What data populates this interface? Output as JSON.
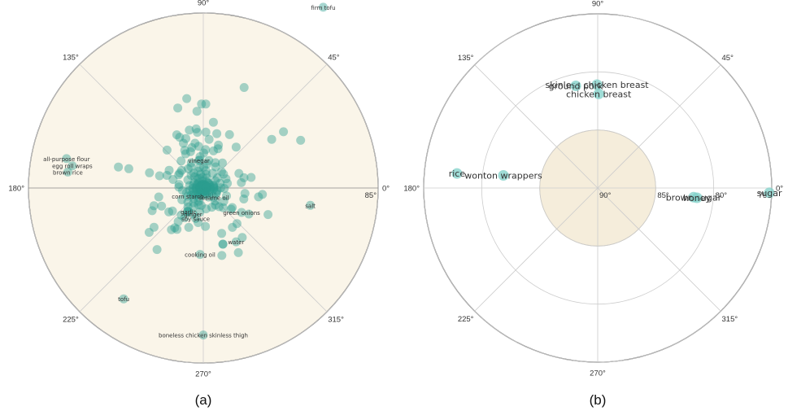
{
  "chart_data": [
    {
      "type": "scatter",
      "projection": "polar",
      "caption": "(a)",
      "background": "#faf5e9",
      "point_color": "#2a9d8f",
      "angle_ticks": [
        "0°",
        "45°",
        "90°",
        "135°",
        "180°",
        "225°",
        "270°",
        "315°"
      ],
      "radial_ticks": [
        {
          "value": 90,
          "label": "90°"
        },
        {
          "value": 85,
          "label": "85°"
        }
      ],
      "r_range": [
        90,
        85
      ],
      "labeled_points": [
        {
          "name": "flank steak",
          "theta": 97.9,
          "r": 84.2
        },
        {
          "name": "pork tenderloin",
          "theta": 92.2,
          "r": 84.0
        },
        {
          "name": "porkchicken",
          "theta": 94.5,
          "r": 83.9
        },
        {
          "name": "firm tofu",
          "theta": 56.4,
          "r": 83.8
        },
        {
          "name": "vinegar",
          "theta": 99.0,
          "r": 89.2
        },
        {
          "name": "brown rice",
          "theta": 173.3,
          "r": 86.1
        },
        {
          "name": "all-purpose flour",
          "theta": 167.9,
          "r": 86.0
        },
        {
          "name": "egg roll wraps",
          "theta": 170.4,
          "r": 86.2
        },
        {
          "name": "corn starch",
          "theta": 207.6,
          "r": 89.5
        },
        {
          "name": "sesame oil",
          "theta": 318.8,
          "r": 89.6
        },
        {
          "name": "garlic",
          "theta": 238.0,
          "r": 89.2
        },
        {
          "name": "green onions",
          "theta": 327.5,
          "r": 88.7
        },
        {
          "name": "ginger",
          "theta": 248.6,
          "r": 89.2
        },
        {
          "name": "soy sauce",
          "theta": 255.9,
          "r": 89.1
        },
        {
          "name": "salt",
          "theta": 350.8,
          "r": 86.9
        },
        {
          "name": "cooking oil",
          "theta": 267.2,
          "r": 88.1
        },
        {
          "name": "water",
          "theta": 301.4,
          "r": 88.2
        },
        {
          "name": "tofu",
          "theta": 234.3,
          "r": 86.1
        },
        {
          "name": "boneless chicken skinless thigh",
          "theta": 270.0,
          "r": 85.8
        }
      ],
      "points": [
        [
          116.5,
          88.3
        ],
        [
          115.0,
          88.4
        ],
        [
          109.5,
          88.5
        ],
        [
          103.6,
          88.3
        ],
        [
          96.1,
          88.4
        ],
        [
          96.9,
          88.3
        ],
        [
          87.3,
          88.4
        ],
        [
          83.2,
          88.6
        ],
        [
          76.0,
          88.4
        ],
        [
          63.9,
          88.3
        ],
        [
          133.8,
          88.5
        ],
        [
          88.3,
          87.6
        ],
        [
          94.7,
          87.8
        ],
        [
          67.9,
          86.9
        ],
        [
          100.5,
          87.4
        ],
        [
          114.0,
          88.6
        ],
        [
          117.3,
          88.9
        ],
        [
          89.4,
          89.0
        ],
        [
          70.6,
          88.7
        ],
        [
          35.4,
          87.6
        ],
        [
          35.0,
          87.2
        ],
        [
          26.1,
          86.9
        ],
        [
          107.7,
          87.6
        ],
        [
          81.3,
          88.1
        ],
        [
          69.5,
          88.8
        ],
        [
          97.8,
          89.2
        ],
        [
          101.5,
          89.6
        ],
        [
          80.8,
          89.3
        ],
        [
          164.4,
          88.7
        ],
        [
          164.2,
          88.4
        ],
        [
          165.5,
          87.8
        ],
        [
          166.1,
          87.5
        ],
        [
          171.6,
          89.3
        ],
        [
          164.2,
          89.1
        ],
        [
          151.9,
          89.2
        ],
        [
          86.6,
          88.9
        ],
        [
          109.4,
          88.9
        ],
        [
          51.2,
          88.5
        ],
        [
          91.2,
          87.6
        ],
        [
          96.4,
          88.8
        ],
        [
          100.5,
          88.7
        ],
        [
          95.9,
          89.1
        ],
        [
          78.6,
          89.2
        ],
        [
          74.7,
          88.9
        ],
        [
          105.9,
          88.8
        ],
        [
          115.3,
          89.2
        ],
        [
          116.2,
          88.8
        ],
        [
          129.4,
          89.0
        ],
        [
          128.4,
          89.3
        ],
        [
          140.7,
          89.2
        ],
        [
          147.6,
          89.2
        ],
        [
          152.5,
          88.9
        ],
        [
          160.9,
          88.9
        ],
        [
          12.5,
          88.6
        ],
        [
          8.0,
          88.9
        ],
        [
          0.5,
          89.5
        ],
        [
          15.7,
          89.5
        ],
        [
          22.1,
          89.3
        ],
        [
          22.2,
          88.9
        ],
        [
          52.6,
          89.1
        ],
        [
          34.3,
          89.3
        ],
        [
          78.3,
          89.6
        ],
        [
          191.4,
          88.7
        ],
        [
          199.8,
          88.5
        ],
        [
          203.4,
          88.7
        ],
        [
          203.9,
          88.4
        ],
        [
          214.8,
          88.8
        ],
        [
          218.5,
          88.2
        ],
        [
          219.3,
          88.0
        ],
        [
          216.8,
          88.9
        ],
        [
          195.6,
          89.5
        ],
        [
          181.9,
          89.7
        ],
        [
          198.0,
          89.7
        ],
        [
          208.7,
          89.3
        ],
        [
          212.7,
          89.7
        ],
        [
          222.7,
          89.4
        ],
        [
          232.6,
          88.5
        ],
        [
          233.2,
          88.8
        ],
        [
          230.8,
          89.3
        ],
        [
          230.8,
          89.0
        ],
        [
          234.3,
          88.6
        ],
        [
          237.6,
          88.6
        ],
        [
          238.0,
          89.0
        ],
        [
          233.0,
          87.8
        ],
        [
          236.0,
          89.2
        ],
        [
          249.7,
          88.8
        ],
        [
          236.7,
          89.5
        ],
        [
          235.9,
          89.2
        ],
        [
          242.2,
          89.4
        ],
        [
          261.5,
          89.0
        ],
        [
          261.8,
          89.3
        ],
        [
          250.5,
          89.6
        ],
        [
          273.2,
          88.9
        ],
        [
          298.5,
          87.9
        ],
        [
          306.5,
          88.6
        ],
        [
          308.2,
          88.2
        ],
        [
          313.5,
          88.6
        ],
        [
          289.3,
          88.3
        ],
        [
          292.1,
          88.6
        ],
        [
          285.4,
          88.0
        ],
        [
          289.2,
          88.3
        ],
        [
          330.3,
          88.5
        ],
        [
          337.7,
          88.0
        ],
        [
          344.8,
          88.8
        ],
        [
          350.9,
          88.4
        ],
        [
          353.8,
          88.3
        ],
        [
          352.7,
          88.8
        ],
        [
          341.3,
          89.3
        ],
        [
          326.7,
          89.3
        ],
        [
          322.6,
          89.0
        ],
        [
          315.3,
          89.2
        ],
        [
          312.0,
          89.5
        ],
        [
          310.3,
          89.3
        ],
        [
          305.5,
          89.4
        ],
        [
          294.0,
          89.4
        ],
        [
          342.1,
          89.6
        ],
        [
          350.3,
          89.6
        ],
        [
          4.3,
          89.8
        ],
        [
          47.6,
          89.8
        ],
        [
          23.9,
          89.8
        ],
        [
          131.2,
          89.8
        ],
        [
          174.5,
          89.8
        ],
        [
          227.6,
          89.6
        ],
        [
          246.5,
          89.7
        ],
        [
          254.0,
          89.5
        ],
        [
          300.5,
          89.7
        ],
        [
          336.6,
          89.6
        ],
        [
          71.0,
          89.7
        ],
        [
          97.6,
          89.8
        ],
        [
          152.3,
          89.5
        ],
        [
          133.9,
          89.5
        ],
        [
          263.4,
          89.5
        ],
        [
          277.8,
          89.4
        ],
        [
          226.8,
          89.8
        ],
        [
          183.7,
          89.8
        ],
        [
          190.1,
          89.6
        ],
        [
          164.4,
          89.7
        ],
        [
          149.5,
          89.7
        ],
        [
          122.4,
          89.5
        ],
        [
          107.0,
          89.5
        ],
        [
          100.8,
          89.4
        ],
        [
          89.0,
          89.4
        ],
        [
          120.3,
          89.3
        ],
        [
          57.3,
          89.5
        ],
        [
          59.6,
          89.3
        ],
        [
          64.6,
          89.2
        ],
        [
          81.6,
          89.5
        ],
        [
          35.8,
          89.5
        ],
        [
          41.9,
          89.3
        ],
        [
          10.9,
          89.3
        ],
        [
          14.1,
          88.8
        ],
        [
          358.9,
          89.4
        ],
        [
          326.0,
          89.0
        ],
        [
          11.6,
          89.7
        ],
        [
          358.7,
          89.7
        ],
        [
          332.3,
          89.8
        ],
        [
          318.2,
          89.8
        ],
        [
          293.3,
          89.8
        ],
        [
          265.7,
          89.8
        ],
        [
          235.6,
          89.8
        ],
        [
          222.2,
          89.7
        ],
        [
          209.7,
          89.6
        ],
        [
          201.9,
          89.8
        ],
        [
          187.0,
          89.4
        ],
        [
          177.7,
          89.3
        ],
        [
          169.8,
          89.6
        ],
        [
          158.1,
          89.8
        ],
        [
          146.0,
          89.8
        ],
        [
          128.0,
          89.6
        ],
        [
          120.1,
          89.7
        ],
        [
          111.8,
          89.7
        ],
        [
          93.5,
          89.7
        ],
        [
          61.6,
          89.8
        ],
        [
          40.9,
          89.8
        ],
        [
          31.1,
          89.6
        ],
        [
          16.0,
          89.7
        ],
        [
          5.0,
          89.7
        ],
        [
          354.3,
          89.7
        ],
        [
          348.9,
          89.8
        ],
        [
          338.5,
          89.9
        ],
        [
          326.7,
          89.9
        ],
        [
          318.4,
          89.9
        ],
        [
          303.4,
          89.9
        ],
        [
          286.5,
          89.9
        ],
        [
          272.9,
          89.9
        ],
        [
          263.3,
          89.9
        ],
        [
          249.8,
          89.9
        ],
        [
          243.0,
          89.8
        ],
        [
          227.7,
          89.9
        ],
        [
          216.3,
          89.9
        ],
        [
          195.6,
          89.9
        ],
        [
          176.6,
          89.9
        ],
        [
          164.3,
          89.9
        ],
        [
          151.5,
          89.9
        ],
        [
          139.2,
          89.9
        ],
        [
          123.7,
          89.9
        ],
        [
          108.9,
          89.9
        ],
        [
          95.4,
          89.9
        ],
        [
          80.3,
          89.9
        ],
        [
          65.2,
          89.9
        ],
        [
          51.8,
          89.9
        ],
        [
          33.7,
          89.9
        ],
        [
          18.8,
          89.9
        ],
        [
          8.2,
          89.9
        ]
      ]
    },
    {
      "type": "scatter",
      "projection": "polar",
      "caption": "(b)",
      "background": "#ffffff",
      "hole_color": "#f5eddb",
      "point_color": "#7fd0c8",
      "angle_ticks": [
        "0°",
        "45°",
        "90°",
        "135°",
        "180°",
        "225°",
        "270°",
        "315°"
      ],
      "radial_ticks": [
        {
          "value": 90,
          "label": "90°"
        },
        {
          "value": 85,
          "label": "85°"
        },
        {
          "value": 80,
          "label": "80°"
        },
        {
          "value": 75,
          "label": "75°"
        }
      ],
      "r_range": [
        90,
        75
      ],
      "hole_r": 85,
      "points": [
        {
          "name": "skinless chicken breast",
          "theta": 90.4,
          "r": 81.1
        },
        {
          "name": "ground pork",
          "theta": 102.1,
          "r": 81.0
        },
        {
          "name": "chicken breast",
          "theta": 89.4,
          "r": 81.9
        },
        {
          "name": "rice",
          "theta": 174.1,
          "r": 77.8
        },
        {
          "name": "wonton wrappers",
          "theta": 172.4,
          "r": 81.8
        },
        {
          "name": "brown sugar",
          "theta": 354.5,
          "r": 81.7
        },
        {
          "name": "honey",
          "theta": 354.4,
          "r": 81.4
        },
        {
          "name": "sugar",
          "theta": 358.4,
          "r": 75.2
        }
      ]
    }
  ]
}
